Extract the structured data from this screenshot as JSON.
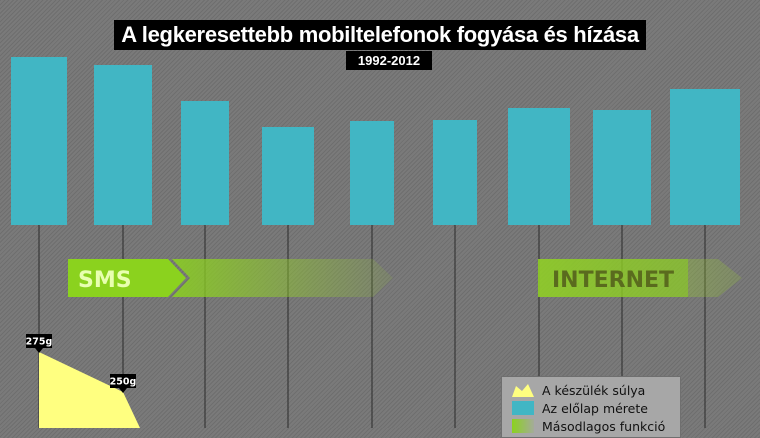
{
  "chart_data": {
    "type": "bar",
    "title": "A legkeresettebb mobiltelefonok fogyása és hízása",
    "subtitle": "1992-2012",
    "front_size_series": {
      "name": "Az előlap mérete",
      "values": [
        168,
        160,
        124,
        98,
        104,
        105,
        117,
        115,
        136
      ]
    },
    "weight_series": {
      "name": "A készülék súlya",
      "unit": "g",
      "points": [
        {
          "index": 0,
          "value": 275,
          "label": "275g"
        },
        {
          "index": 1,
          "value": 250,
          "label": "250g"
        }
      ]
    },
    "bands": [
      {
        "label": "SMS",
        "start_index": 0,
        "end_index": 4
      },
      {
        "label": "INTERNET",
        "start_index": 6,
        "end_index": 8
      }
    ],
    "colors": {
      "bar": "#41b6c4",
      "weight": "#ffff80",
      "band_solid": "#8bd21e",
      "band_fade": "#9acd32",
      "band_text_sms": "#e8ffb0",
      "band_text_internet": "#5a6b1e",
      "marker": "#000000"
    }
  },
  "legend": {
    "items": [
      {
        "label": "A készülék súlya",
        "swatch": "weight-swatch"
      },
      {
        "label": "Az előlap mérete",
        "swatch": "front-size-swatch"
      },
      {
        "label": "Másodlagos funkció",
        "swatch": "band-swatch"
      }
    ]
  }
}
